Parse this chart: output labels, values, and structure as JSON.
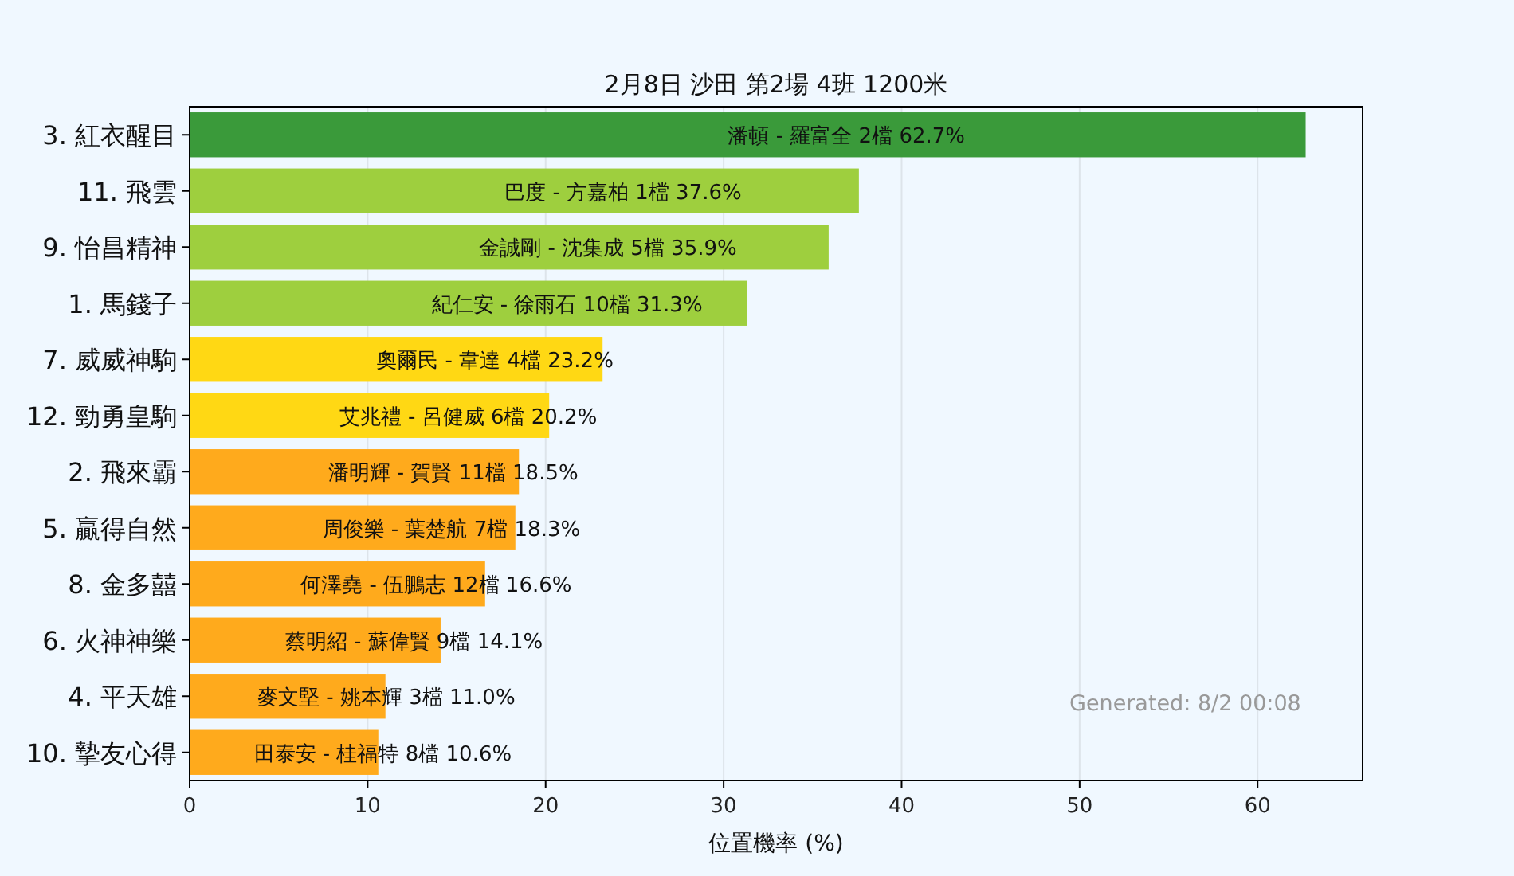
{
  "chart_data": {
    "type": "bar",
    "orientation": "horizontal",
    "title": "2月8日  沙田  第2場  4班  1200米",
    "xlabel": "位置機率 (%)",
    "categories": [
      "3. 紅衣醒目",
      "11. 飛雲",
      "9. 怡昌精神",
      "1. 馬錢子",
      "7. 威威神駒",
      "12. 勁勇皇駒",
      "2. 飛來霸",
      "5. 贏得自然",
      "8. 金多囍",
      "6. 火神神樂",
      "4. 平天雄",
      "10. 摯友心得"
    ],
    "values": [
      62.7,
      37.6,
      35.9,
      31.3,
      23.2,
      20.2,
      18.5,
      18.3,
      16.6,
      14.1,
      11.0,
      10.6
    ],
    "colors": [
      "#3a9a3a",
      "#9ecf3e",
      "#9ecf3e",
      "#9ecf3e",
      "#ffd814",
      "#ffd814",
      "#ffaa1c",
      "#ffaa1c",
      "#ffaa1c",
      "#ffaa1c",
      "#ffaa1c",
      "#ffaa1c"
    ],
    "value_labels": [
      "潘頓 - 羅富全 2檔  62.7%",
      "巴度 - 方嘉柏 1檔  37.6%",
      "金誠剛 - 沈集成 5檔  35.9%",
      "紀仁安 - 徐雨石 10檔  31.3%",
      "奧爾民 - 韋達 4檔  23.2%",
      "艾兆禮 - 呂健威 6檔  20.2%",
      "潘明輝 - 賀賢 11檔  18.5%",
      "周俊樂 - 葉楚航 7檔  18.3%",
      "何澤堯 - 伍鵬志 12檔  16.6%",
      "蔡明紹 - 蘇偉賢 9檔  14.1%",
      "麥文堅 - 姚本輝 3檔  11.0%",
      "田泰安 - 桂福特 8檔  10.6%"
    ],
    "xlim": [
      0,
      65.9
    ],
    "xticks": [
      0,
      10,
      20,
      30,
      40,
      50,
      60
    ],
    "grid": "x",
    "annotations": [
      "Generated: 8/2 00:08"
    ]
  }
}
